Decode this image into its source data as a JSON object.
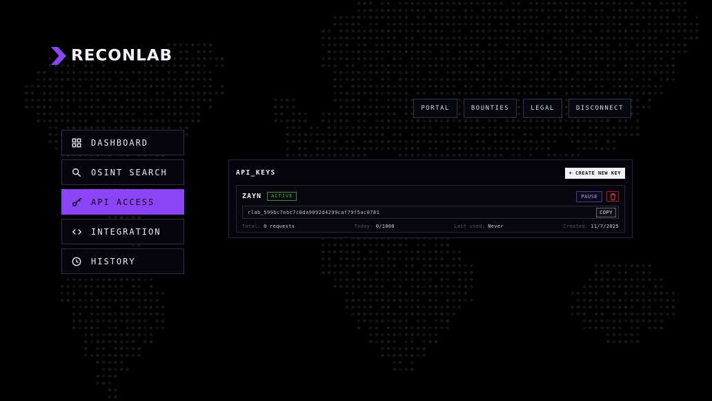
{
  "brand": {
    "name": "RECONLAB"
  },
  "top_nav": {
    "items": [
      {
        "label": "PORTAL"
      },
      {
        "label": "BOUNTIES"
      },
      {
        "label": "LEGAL"
      },
      {
        "label": "DISCONNECT"
      }
    ]
  },
  "sidebar": {
    "items": [
      {
        "label": "DASHBOARD",
        "icon": "dashboard-grid-icon",
        "active": false
      },
      {
        "label": "OSINT SEARCH",
        "icon": "search-icon",
        "active": false
      },
      {
        "label": "API ACCESS",
        "icon": "key-icon",
        "active": true
      },
      {
        "label": "INTEGRATION",
        "icon": "code-icon",
        "active": false
      },
      {
        "label": "HISTORY",
        "icon": "clock-icon",
        "active": false
      }
    ]
  },
  "panel": {
    "title": "API_KEYS",
    "create_button": "+ CREATE NEW KEY",
    "key": {
      "name": "ZAYN",
      "status": "ACTIVE",
      "value": "rlab_599bc7ebc7c0da9092d4299caf79f5ac0781",
      "copy_button": "COPY",
      "pause_button": "PAUSE",
      "delete_icon": "trash-icon",
      "stats": [
        {
          "label": "Total:",
          "value": "0 requests"
        },
        {
          "label": "Today:",
          "value": "0/1000"
        },
        {
          "label": "Last used:",
          "value": "Never"
        },
        {
          "label": "Created:",
          "value": "11/7/2025"
        }
      ]
    }
  },
  "colors": {
    "accent_purple": "#8b45f6",
    "status_green": "#4caf50",
    "danger_red": "#e04552"
  }
}
